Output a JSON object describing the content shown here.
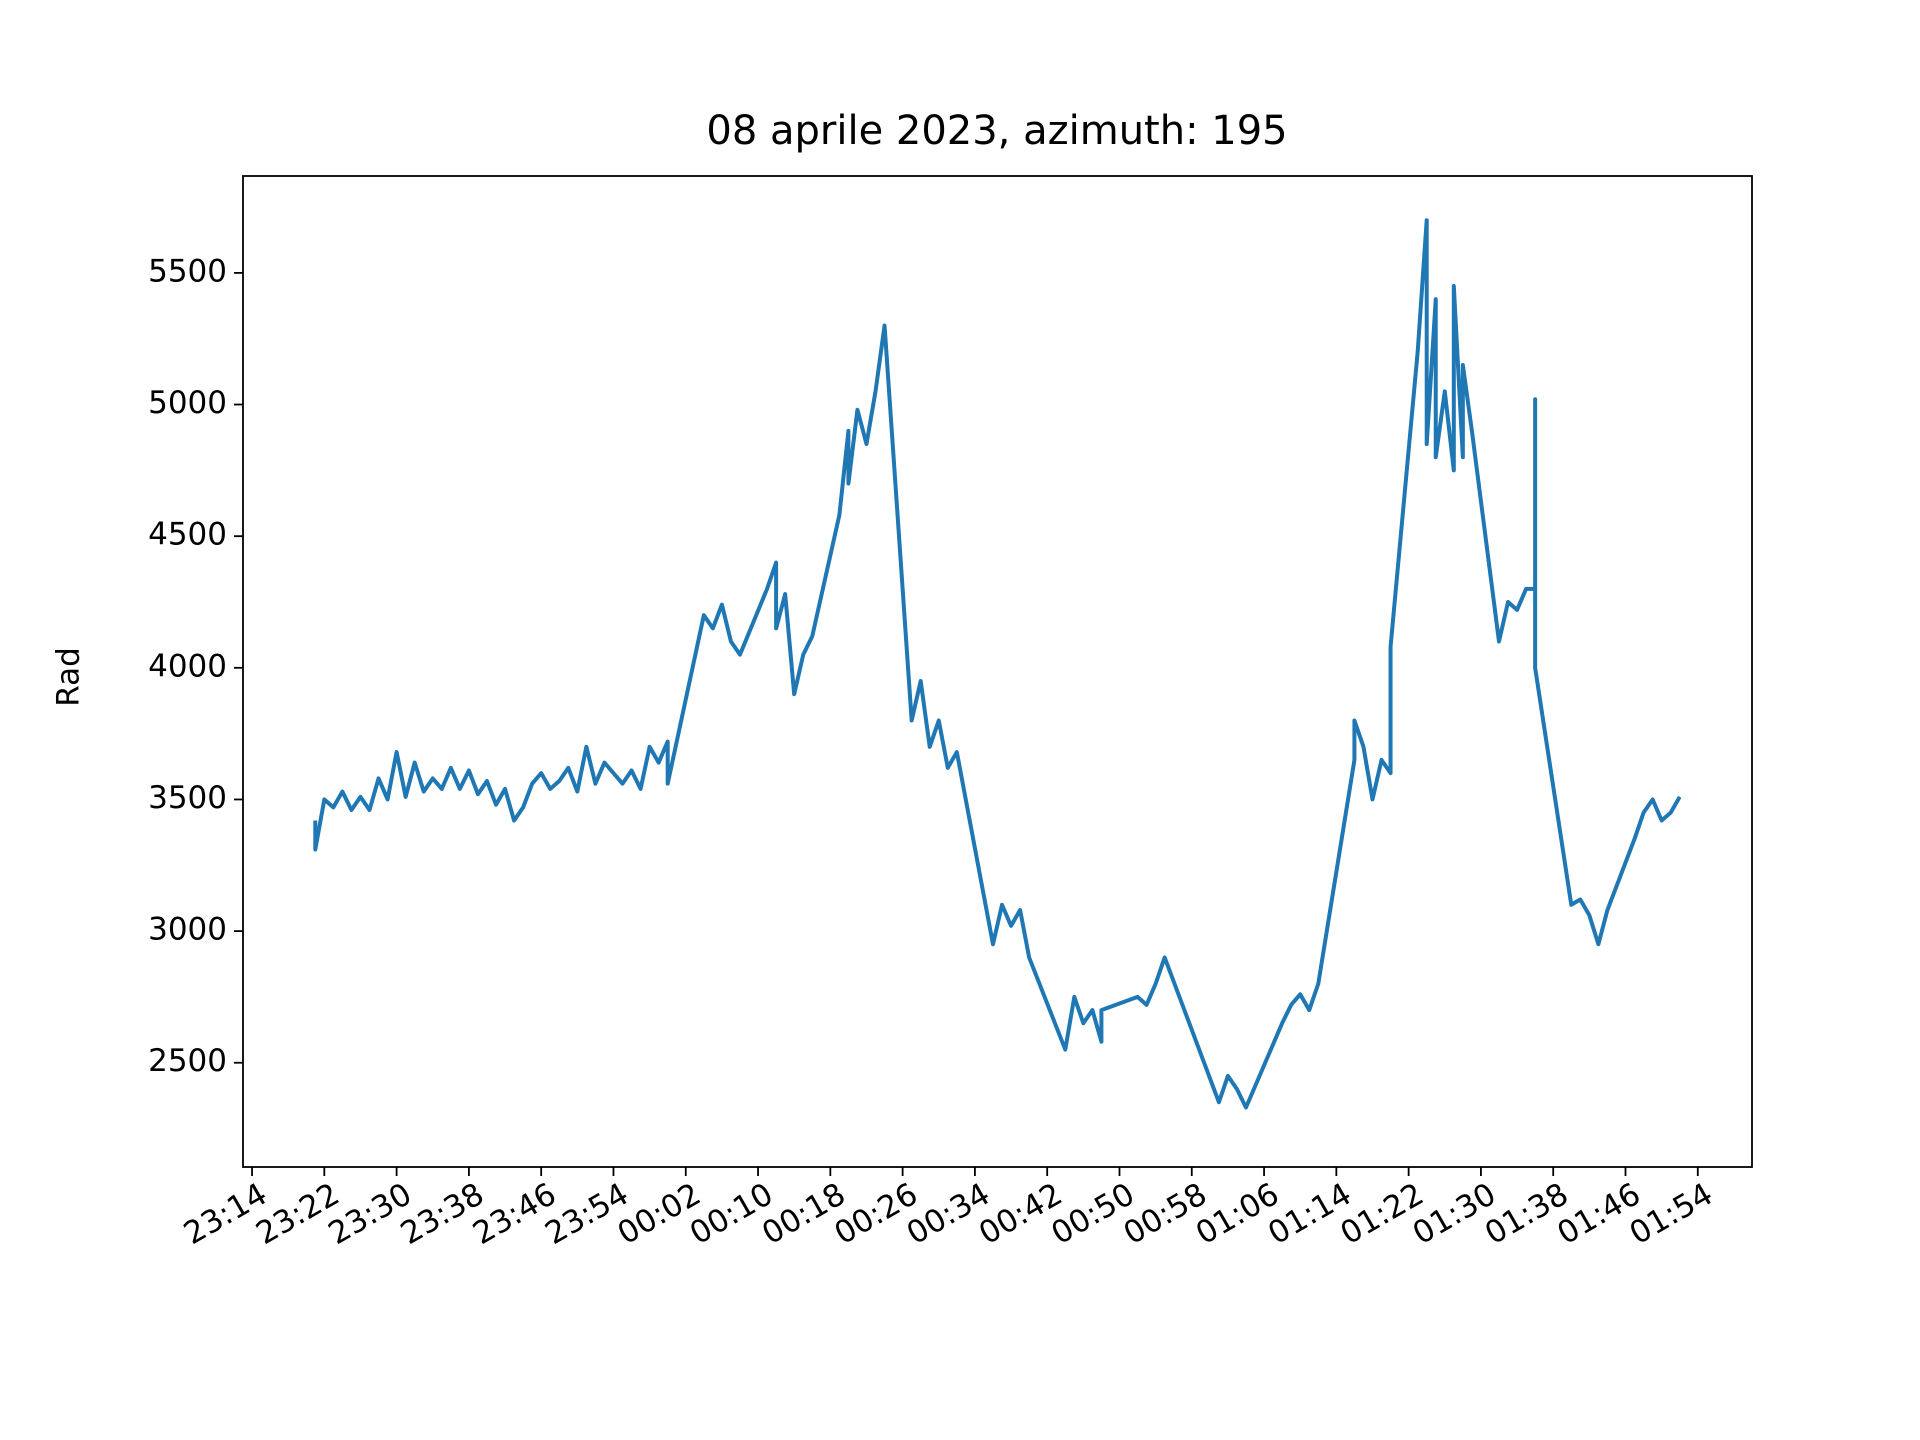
{
  "chart_data": {
    "type": "line",
    "title": "08 aprile 2023, azimuth: 195",
    "ylabel": "Rad",
    "color": "#1f77b4",
    "x": [
      "23:21",
      "23:21",
      "23:22",
      "23:23",
      "23:24",
      "23:25",
      "23:26",
      "23:27",
      "23:28",
      "23:29",
      "23:30",
      "23:31",
      "23:32",
      "23:33",
      "23:34",
      "23:35",
      "23:36",
      "23:37",
      "23:38",
      "23:39",
      "23:40",
      "23:41",
      "23:42",
      "23:43",
      "23:44",
      "23:45",
      "23:46",
      "23:47",
      "23:48",
      "23:49",
      "23:50",
      "23:51",
      "23:52",
      "23:53",
      "23:54",
      "23:55",
      "23:56",
      "23:57",
      "23:58",
      "23:59",
      "00:00",
      "00:00",
      "00:04",
      "00:05",
      "00:06",
      "00:07",
      "00:08",
      "00:11",
      "00:12",
      "00:12",
      "00:13",
      "00:14",
      "00:15",
      "00:16",
      "00:19",
      "00:20",
      "00:20",
      "00:21",
      "00:22",
      "00:23",
      "00:24",
      "00:27",
      "00:28",
      "00:29",
      "00:30",
      "00:31",
      "00:32",
      "00:36",
      "00:37",
      "00:38",
      "00:39",
      "00:40",
      "00:44",
      "00:45",
      "00:46",
      "00:47",
      "00:48",
      "00:48",
      "00:52",
      "00:53",
      "00:54",
      "00:55",
      "01:01",
      "01:02",
      "01:03",
      "01:04",
      "01:08",
      "01:09",
      "01:10",
      "01:11",
      "01:12",
      "01:16",
      "01:16",
      "01:17",
      "01:18",
      "01:19",
      "01:20",
      "01:20",
      "01:23",
      "01:24",
      "01:24",
      "01:25",
      "01:25",
      "01:26",
      "01:27",
      "01:27",
      "01:28",
      "01:28",
      "01:29",
      "01:32",
      "01:33",
      "01:34",
      "01:35",
      "01:36",
      "01:36",
      "01:36",
      "01:40",
      "01:41",
      "01:42",
      "01:43",
      "01:44",
      "01:47",
      "01:48",
      "01:49",
      "01:50",
      "01:51",
      "01:52"
    ],
    "values": [
      3420,
      3310,
      3500,
      3470,
      3530,
      3460,
      3510,
      3460,
      3580,
      3500,
      3680,
      3510,
      3640,
      3530,
      3580,
      3540,
      3620,
      3540,
      3610,
      3520,
      3570,
      3480,
      3540,
      3420,
      3470,
      3560,
      3600,
      3540,
      3570,
      3620,
      3530,
      3700,
      3560,
      3640,
      3600,
      3560,
      3610,
      3540,
      3700,
      3640,
      3720,
      3560,
      4200,
      4150,
      4240,
      4100,
      4050,
      4300,
      4400,
      4150,
      4280,
      3900,
      4050,
      4120,
      4580,
      4900,
      4700,
      4980,
      4850,
      5050,
      5300,
      3800,
      3950,
      3700,
      3800,
      3620,
      3680,
      2950,
      3100,
      3020,
      3080,
      2900,
      2550,
      2750,
      2650,
      2700,
      2580,
      2700,
      2750,
      2720,
      2800,
      2900,
      2350,
      2450,
      2400,
      2330,
      2650,
      2720,
      2760,
      2700,
      2800,
      3650,
      3800,
      3700,
      3500,
      3650,
      3600,
      4080,
      5200,
      5700,
      4850,
      5400,
      4800,
      5050,
      4750,
      5450,
      4800,
      5150,
      4900,
      4100,
      4250,
      4220,
      4300,
      4300,
      5020,
      4000,
      3100,
      3120,
      3060,
      2950,
      3080,
      3350,
      3450,
      3500,
      3420,
      3450,
      3510
    ],
    "xlim": [
      "23:13",
      "02:00"
    ],
    "xticks": [
      "23:14",
      "23:22",
      "23:30",
      "23:38",
      "23:46",
      "23:54",
      "00:02",
      "00:10",
      "00:18",
      "00:26",
      "00:34",
      "00:42",
      "00:50",
      "00:58",
      "01:06",
      "01:14",
      "01:22",
      "01:30",
      "01:38",
      "01:46",
      "01:54"
    ],
    "ylim": [
      2104,
      5868
    ],
    "yticks": [
      2500,
      3000,
      3500,
      4000,
      4500,
      5000,
      5500
    ],
    "grid": false
  }
}
